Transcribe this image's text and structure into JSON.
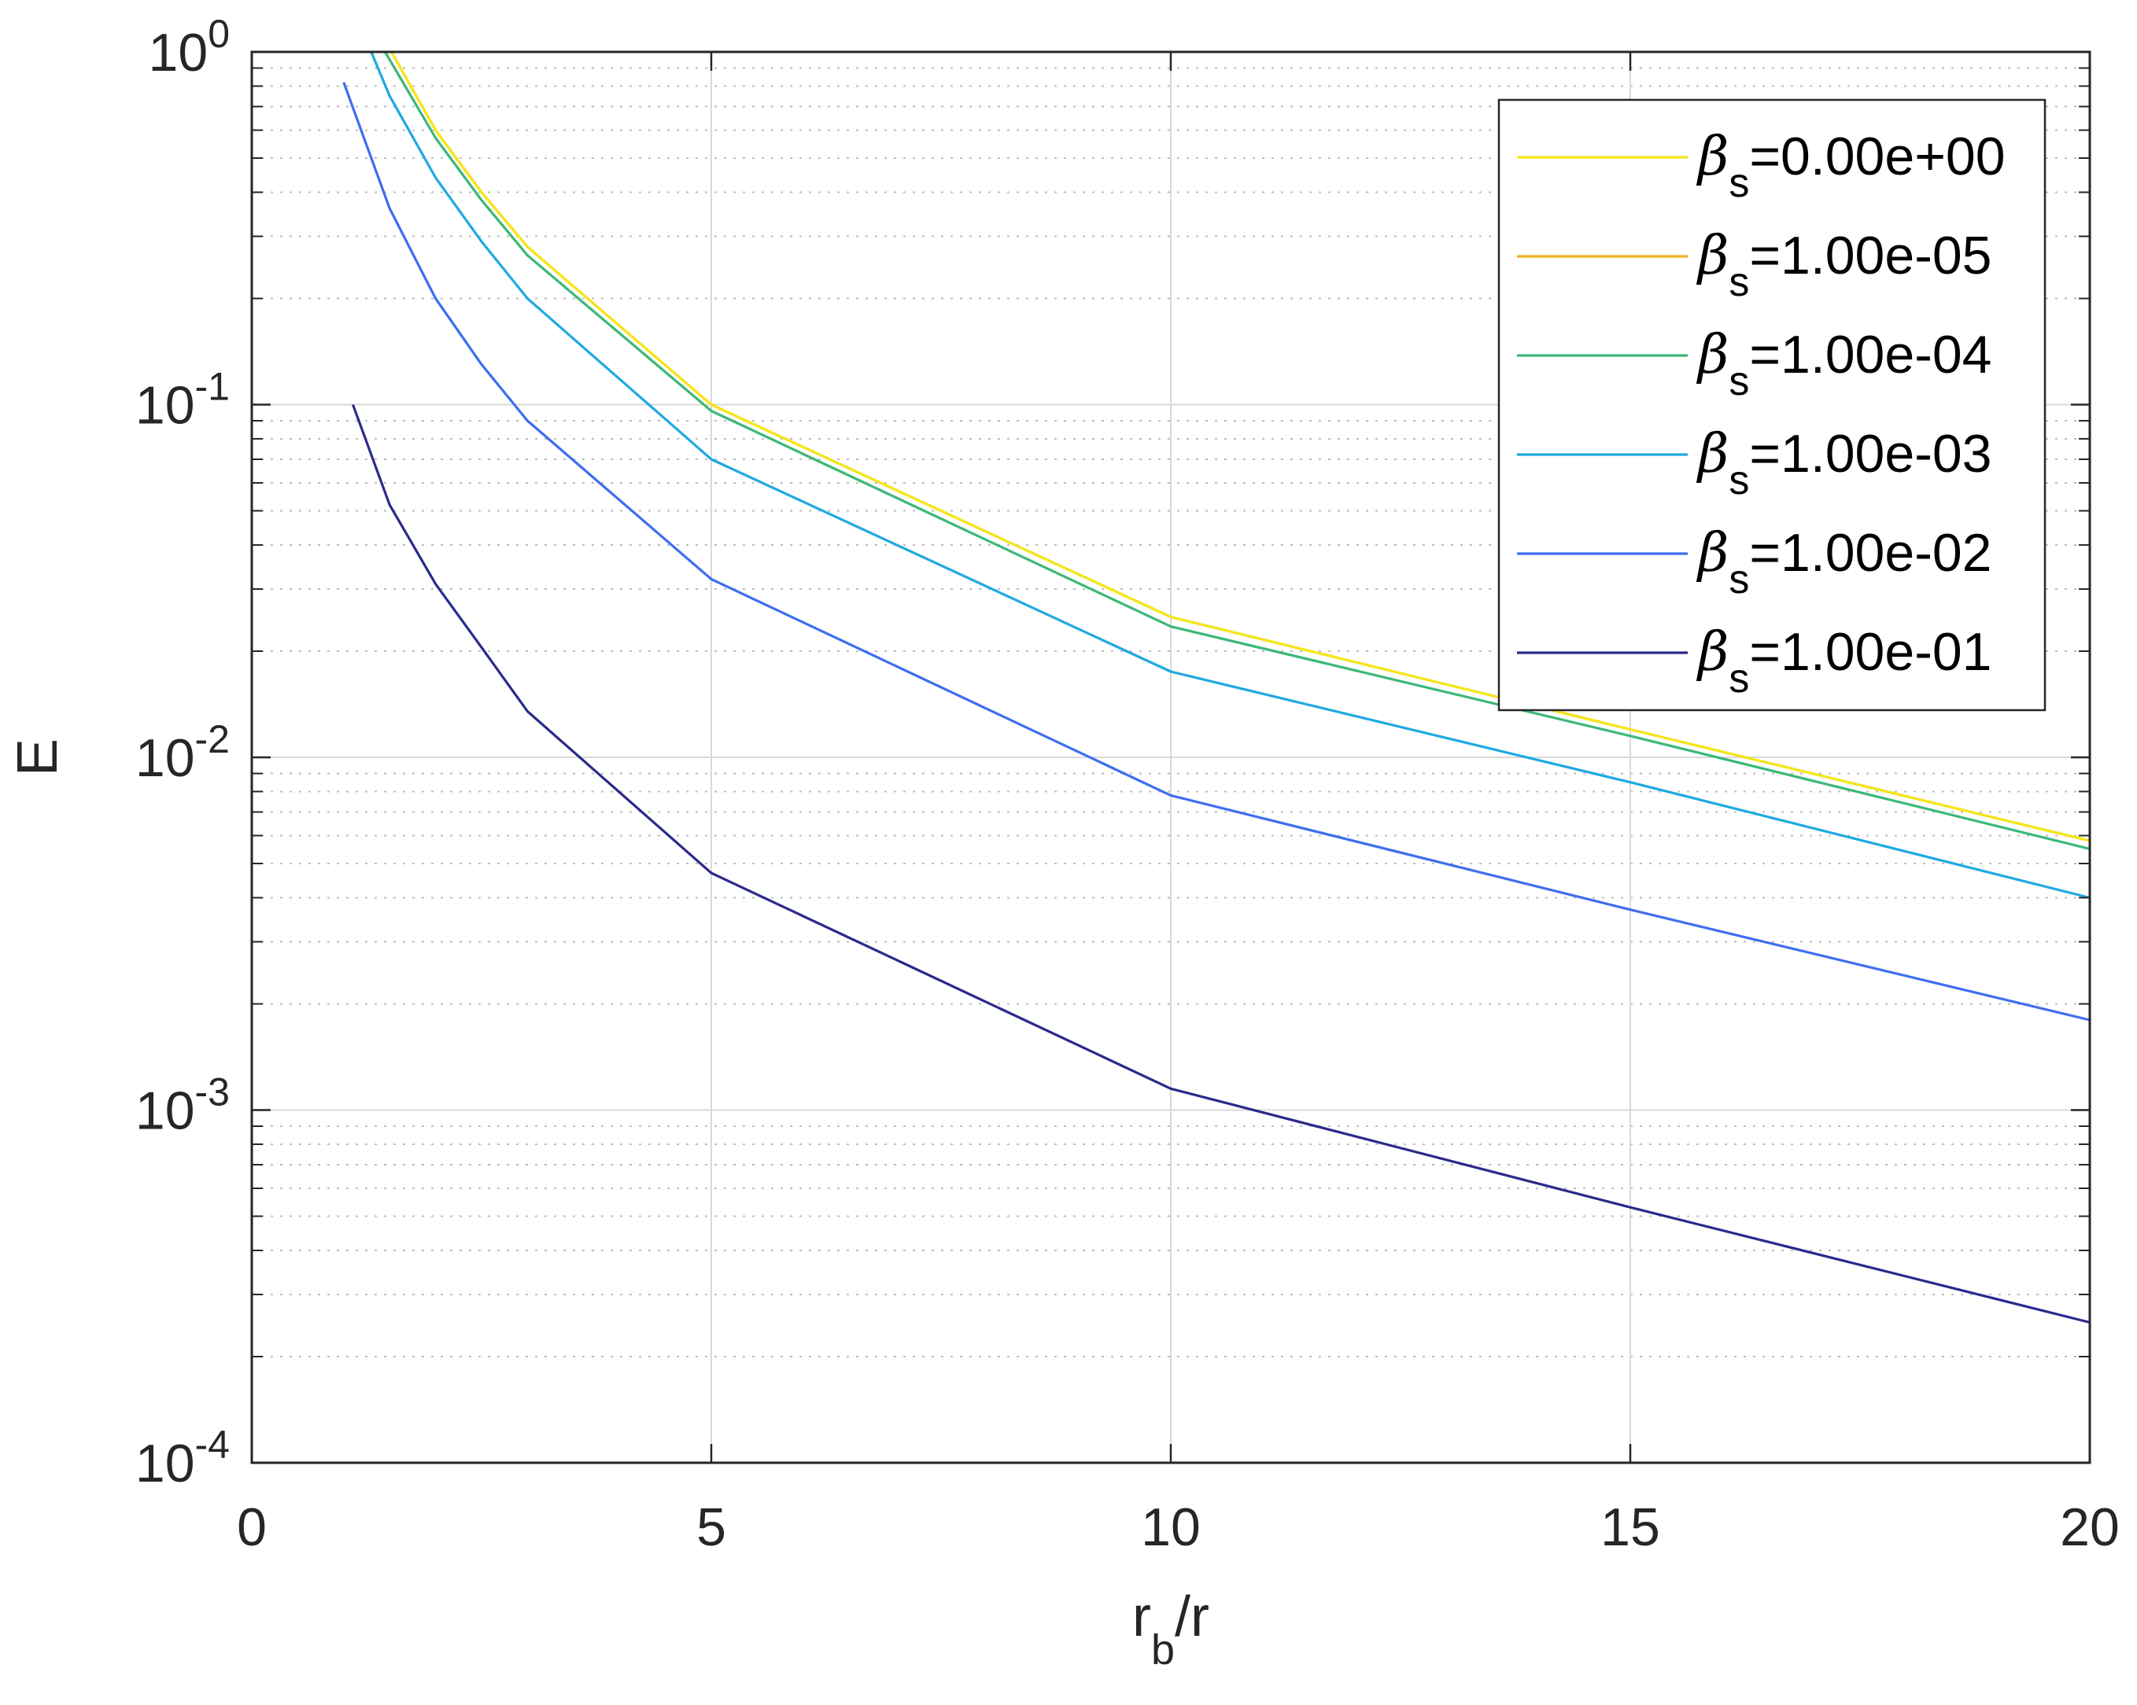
{
  "chart_data": {
    "type": "line",
    "xlabel": "r",
    "xlabel_sub": "b",
    "xlabel_suffix": "/r",
    "ylabel": "E",
    "xscale": "linear",
    "yscale": "log",
    "xlim": [
      0,
      20
    ],
    "ylim": [
      0.0001,
      1
    ],
    "grid": true,
    "minor_grid": true,
    "legend_location": "top-right",
    "x_ticks": [
      {
        "value": 0,
        "label": "0"
      },
      {
        "value": 5,
        "label": "5"
      },
      {
        "value": 10,
        "label": "10"
      },
      {
        "value": 15,
        "label": "15"
      },
      {
        "value": 20,
        "label": "20"
      }
    ],
    "y_ticks": [
      {
        "value": 1,
        "base": "10",
        "exp": "0"
      },
      {
        "value": 0.1,
        "base": "10",
        "exp": "-1"
      },
      {
        "value": 0.01,
        "base": "10",
        "exp": "-2"
      },
      {
        "value": 0.001,
        "base": "10",
        "exp": "-3"
      },
      {
        "value": 0.0001,
        "base": "10",
        "exp": "-4"
      }
    ],
    "series": [
      {
        "name": "β_s=0.00e+00",
        "symbol": "β",
        "sub": "s",
        "value_text": "=0.00e+00",
        "color": "#F5E61A",
        "x": [
          1.52,
          2,
          2.5,
          3,
          5,
          10,
          15,
          20
        ],
        "y": [
          1.0,
          0.6,
          0.4,
          0.28,
          0.1,
          0.025,
          0.012,
          0.0058
        ]
      },
      {
        "name": "β_s=1.00e-05",
        "symbol": "β",
        "sub": "s",
        "value_text": "=1.00e-05",
        "color": "#EDB120",
        "x": [
          1.52,
          2,
          2.5,
          3,
          5,
          10,
          15,
          20
        ],
        "y": [
          1.0,
          0.6,
          0.4,
          0.28,
          0.1,
          0.025,
          0.012,
          0.0058
        ]
      },
      {
        "name": "β_s=1.00e-04",
        "symbol": "β",
        "sub": "s",
        "value_text": "=1.00e-04",
        "color": "#3CB878",
        "x": [
          1.45,
          2,
          2.5,
          3,
          5,
          10,
          15,
          20
        ],
        "y": [
          1.0,
          0.57,
          0.38,
          0.265,
          0.096,
          0.0235,
          0.0115,
          0.0055
        ]
      },
      {
        "name": "β_s=1.00e-03",
        "symbol": "β",
        "sub": "s",
        "value_text": "=1.00e-03",
        "color": "#1FA9E1",
        "x": [
          1.3,
          1.5,
          2,
          2.5,
          3,
          5,
          10,
          15,
          20
        ],
        "y": [
          1.0,
          0.75,
          0.44,
          0.29,
          0.2,
          0.07,
          0.0175,
          0.0085,
          0.004
        ]
      },
      {
        "name": "β_s=1.00e-02",
        "symbol": "β",
        "sub": "s",
        "value_text": "=1.00e-02",
        "color": "#3D6EF0",
        "x": [
          1.0,
          1.5,
          2,
          2.5,
          3,
          5,
          10,
          15,
          20
        ],
        "y": [
          0.82,
          0.36,
          0.2,
          0.13,
          0.09,
          0.032,
          0.0078,
          0.0037,
          0.0018
        ]
      },
      {
        "name": "β_s=1.00e-01",
        "symbol": "β",
        "sub": "s",
        "value_text": "=1.00e-01",
        "color": "#2A2A8C",
        "x": [
          1.1,
          1.5,
          2,
          2.5,
          3,
          5,
          10,
          15,
          20
        ],
        "y": [
          0.1,
          0.052,
          0.031,
          0.0205,
          0.0135,
          0.0047,
          0.00115,
          0.00053,
          0.00025
        ]
      }
    ]
  }
}
